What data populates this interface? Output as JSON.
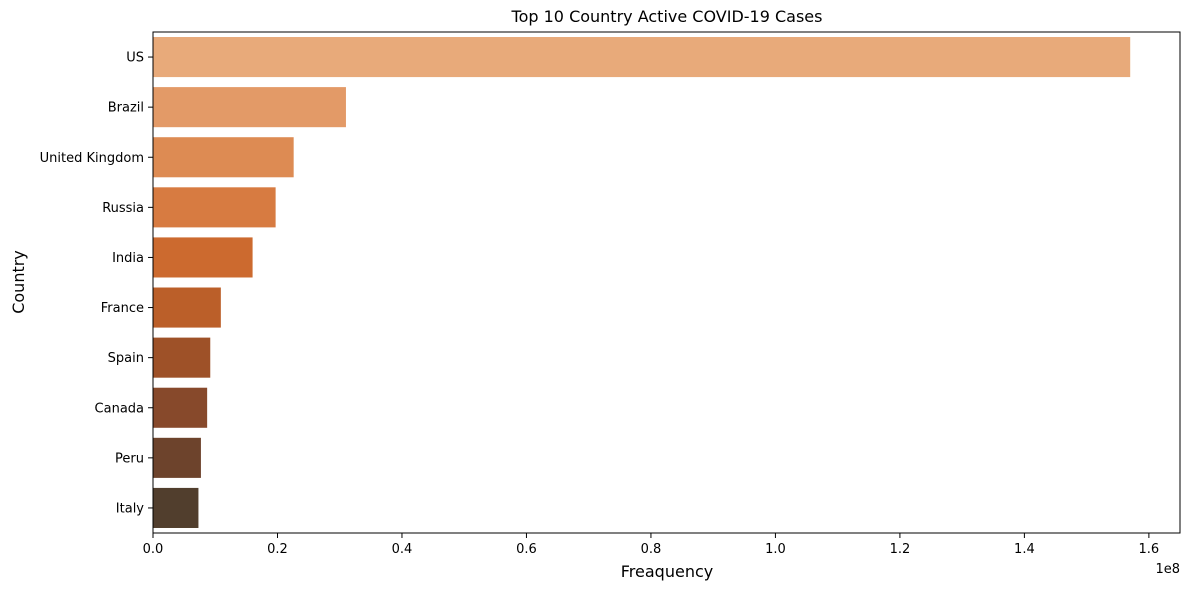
{
  "chart_data": {
    "type": "bar",
    "orientation": "horizontal",
    "title": "Top 10 Country Active COVID-19 Cases",
    "xlabel": "Freaquency",
    "ylabel": "Country",
    "x_offset_label": "1e8",
    "x_ticks": [
      0.0,
      0.2,
      0.4,
      0.6,
      0.8,
      1.0,
      1.2,
      1.4,
      1.6
    ],
    "x_tick_labels": [
      "0.0",
      "0.2",
      "0.4",
      "0.6",
      "0.8",
      "1.0",
      "1.2",
      "1.4",
      "1.6"
    ],
    "xlim": [
      0,
      1.65
    ],
    "grid": false,
    "categories": [
      "US",
      "Brazil",
      "United Kingdom",
      "Russia",
      "India",
      "France",
      "Spain",
      "Canada",
      "Peru",
      "Italy"
    ],
    "values": [
      1.57,
      0.31,
      0.226,
      0.197,
      0.16,
      0.109,
      0.092,
      0.087,
      0.077,
      0.073
    ],
    "colors": [
      "#e8aa7a",
      "#e39a67",
      "#dd8b53",
      "#d77b41",
      "#cc6a2f",
      "#bb5f29",
      "#9e5128",
      "#87492b",
      "#6d432c",
      "#513e2d"
    ]
  }
}
